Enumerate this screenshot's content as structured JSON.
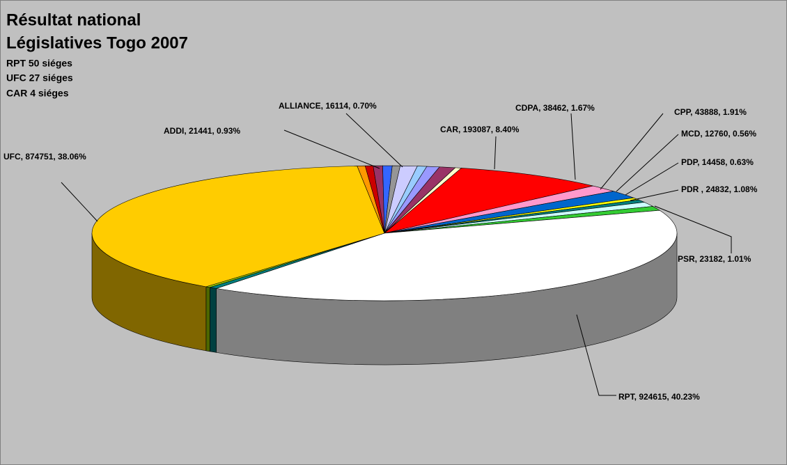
{
  "chart_data": {
    "type": "pie3d",
    "title": "Résultat national",
    "subtitle": "Législatives Togo 2007",
    "annotations": [
      "RPT 50 siéges",
      "UFC 27 siéges",
      "CAR 4 siéges"
    ],
    "values": [
      8000,
      193087,
      38462,
      43888,
      12760,
      14458,
      24832,
      23182,
      924615,
      10000,
      6000,
      874751,
      10000,
      10000,
      12000,
      12000,
      10000,
      21441,
      12000,
      16114,
      20000
    ],
    "value_labels": [
      null,
      "CAR, 193087, 8.40%",
      "CDPA, 38462, 1.67%",
      "CPP, 43888, 1.91%",
      "MCD, 12760, 0.56%",
      "PDP, 14458, 0.63%",
      "PDR , 24832, 1.08%",
      "PSR, 23182, 1.01%",
      "RPT, 924615, 40.23%",
      null,
      null,
      "UFC, 874751, 38.06%",
      null,
      null,
      null,
      null,
      null,
      "ADDI, 21441, 0.93%",
      null,
      "ALLIANCE, 16114, 0.70%",
      null
    ],
    "colors": [
      "#ffffcc",
      "#ff0000",
      "#ff99cc",
      "#0066cc",
      "#ffff00",
      "#008080",
      "#ccffff",
      "#33cc33",
      "#ffffff",
      "#008080",
      "#99cc00",
      "#ffcc00",
      "#ff9900",
      "#cc0000",
      "#993366",
      "#3366ff",
      "#969696",
      "#ccccff",
      "#99ccff",
      "#9999ff",
      "#993366"
    ]
  }
}
